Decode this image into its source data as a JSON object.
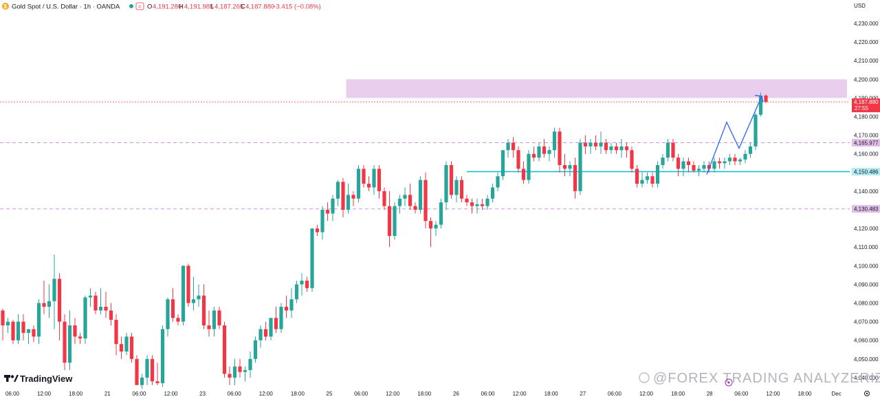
{
  "header": {
    "symbol": "Gold Spot / U.S. Dollar · 1h · OANDA",
    "open_label": "O",
    "open": "4,191.280",
    "high_label": "H",
    "high": "4,191.985",
    "low_label": "L",
    "low": "4,187.265",
    "close_label": "C",
    "close": "4,187.880",
    "change": "−3.415 (−0.08%)"
  },
  "currency": "USD",
  "price_ticks": [
    "4,230.000",
    "4,220.000",
    "4,210.000",
    "4,200.000",
    "4,190.000",
    "4,180.000",
    "4,170.000",
    "4,160.000",
    "4,150.000",
    "4,140.000",
    "4,130.000",
    "4,120.000",
    "4,110.000",
    "4,100.000",
    "4,090.000",
    "4,080.000",
    "4,070.000",
    "4,060.000",
    "4,050.000",
    "4,040.000"
  ],
  "time_ticks": [
    "06:00",
    "12:00",
    "18:00",
    "21",
    "06:00",
    "12:00",
    "23",
    "06:00",
    "12:00",
    "18:00",
    "25",
    "06:00",
    "12:00",
    "18:00",
    "26",
    "06:00",
    "12:00",
    "18:00",
    "27",
    "06:00",
    "12:00",
    "18:00",
    "28",
    "06:00",
    "12:00",
    "18:00",
    "Dec"
  ],
  "price_tags": {
    "current": "4,187.880",
    "countdown": "27:55",
    "level_1": "4,165.977",
    "level_2": "4,150.486",
    "level_3": "4,130.483"
  },
  "watermark": "@FOREX TRADING ANALYZERIZI",
  "brand": "TradingView",
  "colors": {
    "up": "#26a69a",
    "down": "#f23645",
    "zone": "#e1bee7",
    "level_cyan": "#00bcd4",
    "level_purple": "#ce93d8",
    "projection": "#2962ff",
    "current": "#f23645"
  },
  "chart_data": {
    "type": "candlestick",
    "title": "Gold Spot / U.S. Dollar · 1h · OANDA",
    "xlabel": "",
    "ylabel": "",
    "ylim": [
      4033,
      4235
    ],
    "grid": false,
    "candles": [
      {
        "o": 4076,
        "h": 4077,
        "l": 4060,
        "c": 4068
      },
      {
        "o": 4068,
        "h": 4072,
        "l": 4064,
        "c": 4070
      },
      {
        "o": 4070,
        "h": 4071,
        "l": 4058,
        "c": 4060
      },
      {
        "o": 4060,
        "h": 4074,
        "l": 4058,
        "c": 4070
      },
      {
        "o": 4070,
        "h": 4074,
        "l": 4060,
        "c": 4064
      },
      {
        "o": 4064,
        "h": 4066,
        "l": 4058,
        "c": 4066
      },
      {
        "o": 4066,
        "h": 4068,
        "l": 4059,
        "c": 4062
      },
      {
        "o": 4062,
        "h": 4082,
        "l": 4058,
        "c": 4080
      },
      {
        "o": 4080,
        "h": 4092,
        "l": 4074,
        "c": 4078
      },
      {
        "o": 4078,
        "h": 4090,
        "l": 4072,
        "c": 4081
      },
      {
        "o": 4081,
        "h": 4106,
        "l": 4066,
        "c": 4093
      },
      {
        "o": 4093,
        "h": 4096,
        "l": 4060,
        "c": 4070
      },
      {
        "o": 4070,
        "h": 4074,
        "l": 4044,
        "c": 4048
      },
      {
        "o": 4048,
        "h": 4076,
        "l": 4044,
        "c": 4068
      },
      {
        "o": 4068,
        "h": 4072,
        "l": 4058,
        "c": 4062
      },
      {
        "o": 4062,
        "h": 4064,
        "l": 4058,
        "c": 4061
      },
      {
        "o": 4061,
        "h": 4084,
        "l": 4058,
        "c": 4083
      },
      {
        "o": 4083,
        "h": 4088,
        "l": 4078,
        "c": 4084
      },
      {
        "o": 4084,
        "h": 4086,
        "l": 4074,
        "c": 4076
      },
      {
        "o": 4076,
        "h": 4088,
        "l": 4074,
        "c": 4078
      },
      {
        "o": 4078,
        "h": 4086,
        "l": 4072,
        "c": 4076
      },
      {
        "o": 4076,
        "h": 4080,
        "l": 4068,
        "c": 4071
      },
      {
        "o": 4071,
        "h": 4074,
        "l": 4052,
        "c": 4058
      },
      {
        "o": 4058,
        "h": 4062,
        "l": 4050,
        "c": 4054
      },
      {
        "o": 4054,
        "h": 4064,
        "l": 4052,
        "c": 4062
      },
      {
        "o": 4062,
        "h": 4064,
        "l": 4048,
        "c": 4050
      },
      {
        "o": 4050,
        "h": 4052,
        "l": 4036,
        "c": 4036
      },
      {
        "o": 4036,
        "h": 4042,
        "l": 4034,
        "c": 4040
      },
      {
        "o": 4040,
        "h": 4052,
        "l": 4036,
        "c": 4050
      },
      {
        "o": 4050,
        "h": 4052,
        "l": 4036,
        "c": 4038
      },
      {
        "o": 4038,
        "h": 4048,
        "l": 4036,
        "c": 4037
      },
      {
        "o": 4037,
        "h": 4068,
        "l": 4035,
        "c": 4066
      },
      {
        "o": 4066,
        "h": 4083,
        "l": 4062,
        "c": 4082
      },
      {
        "o": 4082,
        "h": 4088,
        "l": 4070,
        "c": 4072
      },
      {
        "o": 4072,
        "h": 4074,
        "l": 4068,
        "c": 4070
      },
      {
        "o": 4070,
        "h": 4100,
        "l": 4068,
        "c": 4100
      },
      {
        "o": 4100,
        "h": 4101,
        "l": 4078,
        "c": 4080
      },
      {
        "o": 4080,
        "h": 4094,
        "l": 4076,
        "c": 4082
      },
      {
        "o": 4082,
        "h": 4090,
        "l": 4078,
        "c": 4084
      },
      {
        "o": 4084,
        "h": 4090,
        "l": 4066,
        "c": 4068
      },
      {
        "o": 4068,
        "h": 4076,
        "l": 4062,
        "c": 4066
      },
      {
        "o": 4066,
        "h": 4078,
        "l": 4062,
        "c": 4076
      },
      {
        "o": 4076,
        "h": 4078,
        "l": 4066,
        "c": 4068
      },
      {
        "o": 4068,
        "h": 4070,
        "l": 4040,
        "c": 4042
      },
      {
        "o": 4042,
        "h": 4046,
        "l": 4036,
        "c": 4040
      },
      {
        "o": 4040,
        "h": 4050,
        "l": 4036,
        "c": 4046
      },
      {
        "o": 4046,
        "h": 4050,
        "l": 4040,
        "c": 4043
      },
      {
        "o": 4043,
        "h": 4046,
        "l": 4038,
        "c": 4044
      },
      {
        "o": 4044,
        "h": 4054,
        "l": 4040,
        "c": 4050
      },
      {
        "o": 4050,
        "h": 4062,
        "l": 4048,
        "c": 4060
      },
      {
        "o": 4060,
        "h": 4068,
        "l": 4056,
        "c": 4066
      },
      {
        "o": 4066,
        "h": 4070,
        "l": 4060,
        "c": 4062
      },
      {
        "o": 4062,
        "h": 4072,
        "l": 4060,
        "c": 4072
      },
      {
        "o": 4072,
        "h": 4078,
        "l": 4064,
        "c": 4066
      },
      {
        "o": 4066,
        "h": 4080,
        "l": 4064,
        "c": 4078
      },
      {
        "o": 4078,
        "h": 4084,
        "l": 4072,
        "c": 4076
      },
      {
        "o": 4076,
        "h": 4088,
        "l": 4072,
        "c": 4082
      },
      {
        "o": 4082,
        "h": 4092,
        "l": 4080,
        "c": 4090
      },
      {
        "o": 4090,
        "h": 4096,
        "l": 4084,
        "c": 4092
      },
      {
        "o": 4092,
        "h": 4094,
        "l": 4086,
        "c": 4088
      },
      {
        "o": 4088,
        "h": 4120,
        "l": 4086,
        "c": 4120
      },
      {
        "o": 4120,
        "h": 4122,
        "l": 4116,
        "c": 4118
      },
      {
        "o": 4118,
        "h": 4132,
        "l": 4114,
        "c": 4130
      },
      {
        "o": 4130,
        "h": 4134,
        "l": 4124,
        "c": 4128
      },
      {
        "o": 4128,
        "h": 4138,
        "l": 4124,
        "c": 4136
      },
      {
        "o": 4136,
        "h": 4146,
        "l": 4132,
        "c": 4145
      },
      {
        "o": 4145,
        "h": 4147,
        "l": 4126,
        "c": 4130
      },
      {
        "o": 4130,
        "h": 4144,
        "l": 4128,
        "c": 4138
      },
      {
        "o": 4138,
        "h": 4140,
        "l": 4132,
        "c": 4136
      },
      {
        "o": 4136,
        "h": 4154,
        "l": 4134,
        "c": 4152
      },
      {
        "o": 4152,
        "h": 4154,
        "l": 4142,
        "c": 4144
      },
      {
        "o": 4144,
        "h": 4148,
        "l": 4140,
        "c": 4142
      },
      {
        "o": 4142,
        "h": 4154,
        "l": 4138,
        "c": 4152
      },
      {
        "o": 4152,
        "h": 4154,
        "l": 4136,
        "c": 4140
      },
      {
        "o": 4140,
        "h": 4142,
        "l": 4130,
        "c": 4132
      },
      {
        "o": 4132,
        "h": 4140,
        "l": 4110,
        "c": 4116
      },
      {
        "o": 4116,
        "h": 4134,
        "l": 4114,
        "c": 4132
      },
      {
        "o": 4132,
        "h": 4138,
        "l": 4128,
        "c": 4136
      },
      {
        "o": 4136,
        "h": 4142,
        "l": 4132,
        "c": 4138
      },
      {
        "o": 4138,
        "h": 4144,
        "l": 4130,
        "c": 4132
      },
      {
        "o": 4132,
        "h": 4134,
        "l": 4128,
        "c": 4130
      },
      {
        "o": 4130,
        "h": 4148,
        "l": 4128,
        "c": 4146
      },
      {
        "o": 4146,
        "h": 4150,
        "l": 4120,
        "c": 4124
      },
      {
        "o": 4124,
        "h": 4126,
        "l": 4110,
        "c": 4120
      },
      {
        "o": 4120,
        "h": 4124,
        "l": 4116,
        "c": 4122
      },
      {
        "o": 4122,
        "h": 4136,
        "l": 4120,
        "c": 4134
      },
      {
        "o": 4134,
        "h": 4156,
        "l": 4130,
        "c": 4154
      },
      {
        "o": 4154,
        "h": 4156,
        "l": 4136,
        "c": 4138
      },
      {
        "o": 4138,
        "h": 4148,
        "l": 4134,
        "c": 4146
      },
      {
        "o": 4146,
        "h": 4148,
        "l": 4134,
        "c": 4136
      },
      {
        "o": 4136,
        "h": 4138,
        "l": 4132,
        "c": 4134
      },
      {
        "o": 4134,
        "h": 4136,
        "l": 4128,
        "c": 4132
      },
      {
        "o": 4132,
        "h": 4136,
        "l": 4128,
        "c": 4133
      },
      {
        "o": 4133,
        "h": 4136,
        "l": 4130,
        "c": 4132
      },
      {
        "o": 4132,
        "h": 4138,
        "l": 4130,
        "c": 4136
      },
      {
        "o": 4136,
        "h": 4144,
        "l": 4134,
        "c": 4142
      },
      {
        "o": 4142,
        "h": 4150,
        "l": 4140,
        "c": 4148
      },
      {
        "o": 4148,
        "h": 4162,
        "l": 4146,
        "c": 4162
      },
      {
        "o": 4162,
        "h": 4168,
        "l": 4158,
        "c": 4166
      },
      {
        "o": 4166,
        "h": 4169,
        "l": 4158,
        "c": 4162
      },
      {
        "o": 4162,
        "h": 4164,
        "l": 4150,
        "c": 4152
      },
      {
        "o": 4152,
        "h": 4156,
        "l": 4144,
        "c": 4146
      },
      {
        "o": 4146,
        "h": 4162,
        "l": 4144,
        "c": 4160
      },
      {
        "o": 4160,
        "h": 4164,
        "l": 4156,
        "c": 4158
      },
      {
        "o": 4158,
        "h": 4166,
        "l": 4156,
        "c": 4164
      },
      {
        "o": 4164,
        "h": 4168,
        "l": 4158,
        "c": 4160
      },
      {
        "o": 4160,
        "h": 4164,
        "l": 4156,
        "c": 4162
      },
      {
        "o": 4162,
        "h": 4174,
        "l": 4158,
        "c": 4172
      },
      {
        "o": 4172,
        "h": 4174,
        "l": 4150,
        "c": 4154
      },
      {
        "o": 4154,
        "h": 4160,
        "l": 4148,
        "c": 4152
      },
      {
        "o": 4152,
        "h": 4156,
        "l": 4148,
        "c": 4154
      },
      {
        "o": 4154,
        "h": 4158,
        "l": 4136,
        "c": 4140
      },
      {
        "o": 4140,
        "h": 4168,
        "l": 4138,
        "c": 4166
      },
      {
        "o": 4166,
        "h": 4170,
        "l": 4160,
        "c": 4164
      },
      {
        "o": 4164,
        "h": 4168,
        "l": 4160,
        "c": 4166
      },
      {
        "o": 4166,
        "h": 4170,
        "l": 4162,
        "c": 4164
      },
      {
        "o": 4164,
        "h": 4172,
        "l": 4160,
        "c": 4166
      },
      {
        "o": 4166,
        "h": 4168,
        "l": 4160,
        "c": 4162
      },
      {
        "o": 4162,
        "h": 4166,
        "l": 4160,
        "c": 4164
      },
      {
        "o": 4164,
        "h": 4166,
        "l": 4160,
        "c": 4162
      },
      {
        "o": 4162,
        "h": 4168,
        "l": 4158,
        "c": 4164
      },
      {
        "o": 4164,
        "h": 4166,
        "l": 4158,
        "c": 4162
      },
      {
        "o": 4162,
        "h": 4164,
        "l": 4150,
        "c": 4152
      },
      {
        "o": 4152,
        "h": 4154,
        "l": 4142,
        "c": 4144
      },
      {
        "o": 4144,
        "h": 4150,
        "l": 4142,
        "c": 4146
      },
      {
        "o": 4146,
        "h": 4150,
        "l": 4144,
        "c": 4148
      },
      {
        "o": 4148,
        "h": 4150,
        "l": 4142,
        "c": 4144
      },
      {
        "o": 4144,
        "h": 4156,
        "l": 4142,
        "c": 4154
      },
      {
        "o": 4154,
        "h": 4160,
        "l": 4152,
        "c": 4158
      },
      {
        "o": 4158,
        "h": 4168,
        "l": 4156,
        "c": 4166
      },
      {
        "o": 4166,
        "h": 4168,
        "l": 4156,
        "c": 4158
      },
      {
        "o": 4158,
        "h": 4160,
        "l": 4148,
        "c": 4152
      },
      {
        "o": 4152,
        "h": 4158,
        "l": 4148,
        "c": 4156
      },
      {
        "o": 4156,
        "h": 4158,
        "l": 4150,
        "c": 4154
      },
      {
        "o": 4154,
        "h": 4156,
        "l": 4150,
        "c": 4151
      },
      {
        "o": 4151,
        "h": 4154,
        "l": 4148,
        "c": 4152
      },
      {
        "o": 4152,
        "h": 4156,
        "l": 4150,
        "c": 4154
      },
      {
        "o": 4154,
        "h": 4156,
        "l": 4150,
        "c": 4152
      },
      {
        "o": 4152,
        "h": 4158,
        "l": 4150,
        "c": 4156
      },
      {
        "o": 4156,
        "h": 4158,
        "l": 4152,
        "c": 4155
      },
      {
        "o": 4155,
        "h": 4158,
        "l": 4152,
        "c": 4156
      },
      {
        "o": 4156,
        "h": 4160,
        "l": 4154,
        "c": 4158
      },
      {
        "o": 4158,
        "h": 4160,
        "l": 4154,
        "c": 4156
      },
      {
        "o": 4156,
        "h": 4158,
        "l": 4154,
        "c": 4157
      },
      {
        "o": 4157,
        "h": 4162,
        "l": 4155,
        "c": 4160
      },
      {
        "o": 4160,
        "h": 4166,
        "l": 4158,
        "c": 4164
      },
      {
        "o": 4164,
        "h": 4182,
        "l": 4162,
        "c": 4181
      },
      {
        "o": 4181,
        "h": 4193,
        "l": 4180,
        "c": 4191
      },
      {
        "o": 4191.28,
        "h": 4191.985,
        "l": 4187.265,
        "c": 4187.88
      }
    ],
    "levels": [
      4187.88,
      4165.977,
      4150.486,
      4130.483
    ],
    "resistance_zone": [
      4190,
      4200
    ]
  }
}
